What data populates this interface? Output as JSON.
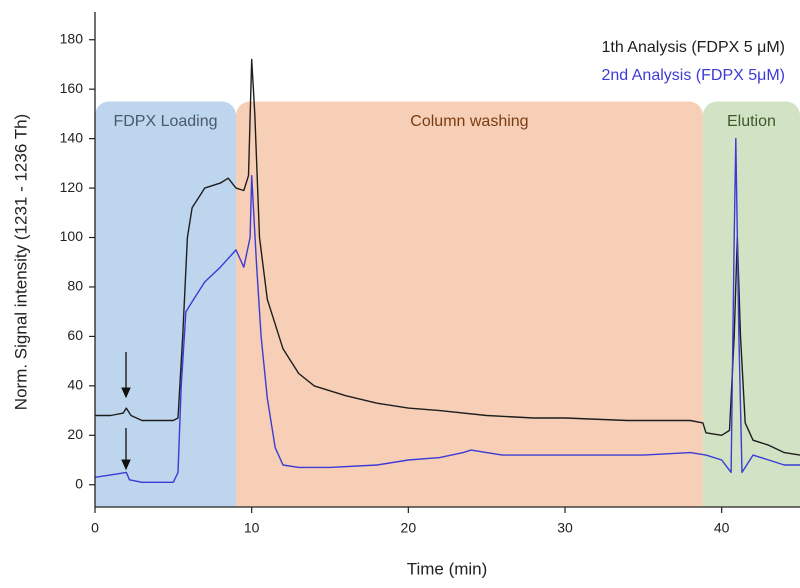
{
  "chart_data": {
    "type": "line",
    "xlabel": "Time (min)",
    "ylabel": "Norm. Signal intensity (1231 - 1236 Th)",
    "xlim": [
      0,
      45
    ],
    "ylim": [
      -9,
      190
    ],
    "xticks": [
      0,
      10,
      20,
      30,
      40
    ],
    "yticks": [
      0,
      20,
      40,
      60,
      80,
      100,
      120,
      140,
      160,
      180
    ],
    "legend": "top-right",
    "regions": [
      {
        "label": "FDPX Loading",
        "start": 0,
        "end": 9,
        "top": 155,
        "color": "#bdd5ed",
        "label_color": "#4a5a6a"
      },
      {
        "label": "Column washing",
        "start": 9,
        "end": 38.8,
        "top": 155,
        "color": "#f7cfb7",
        "label_color": "#7a3b10"
      },
      {
        "label": "Elution",
        "start": 38.8,
        "end": 45,
        "top": 155,
        "color": "#d1e3c4",
        "label_color": "#3d5a2a"
      }
    ],
    "series": [
      {
        "name": "1th Analysis (FDPX 5 μM)",
        "color": "#1e1e1e",
        "x": [
          0,
          1,
          1.8,
          2,
          2.3,
          3,
          5,
          5.3,
          5.6,
          5.9,
          6.2,
          7,
          8,
          8.5,
          9,
          9.5,
          9.8,
          10,
          10.2,
          10.5,
          11,
          12,
          13,
          14,
          16,
          18,
          20,
          22,
          25,
          28,
          30,
          34,
          38,
          38.8,
          39,
          40,
          40.5,
          40.8,
          41,
          41.2,
          41.5,
          42,
          43,
          44,
          45
        ],
        "values": [
          28,
          28,
          29,
          31,
          28,
          26,
          26,
          27,
          60,
          100,
          112,
          120,
          122,
          124,
          120,
          119,
          125,
          172,
          150,
          100,
          75,
          55,
          45,
          40,
          36,
          33,
          31,
          30,
          28,
          27,
          27,
          26,
          26,
          25,
          21,
          20,
          22,
          60,
          100,
          60,
          25,
          18,
          16,
          13,
          12
        ]
      },
      {
        "name": "2nd Analysis (FDPX 5μM)",
        "color": "#3b3bd6",
        "x": [
          0,
          1,
          2,
          2.2,
          3,
          5,
          5.3,
          5.5,
          5.8,
          6.3,
          7,
          8,
          9,
          9.5,
          9.9,
          10,
          10.3,
          10.6,
          11,
          11.5,
          12,
          13,
          15,
          18,
          20,
          22,
          23.5,
          24,
          26,
          30,
          35,
          38,
          39,
          40,
          40.6,
          40.8,
          40.9,
          41.1,
          41.3,
          42,
          43,
          44,
          45
        ],
        "values": [
          3,
          4,
          5,
          2,
          1,
          1,
          5,
          40,
          70,
          75,
          82,
          88,
          95,
          88,
          100,
          125,
          90,
          60,
          35,
          15,
          8,
          7,
          7,
          8,
          10,
          11,
          13,
          14,
          12,
          12,
          12,
          13,
          12,
          10,
          5,
          100,
          140,
          60,
          5,
          12,
          10,
          8,
          8
        ]
      }
    ]
  }
}
